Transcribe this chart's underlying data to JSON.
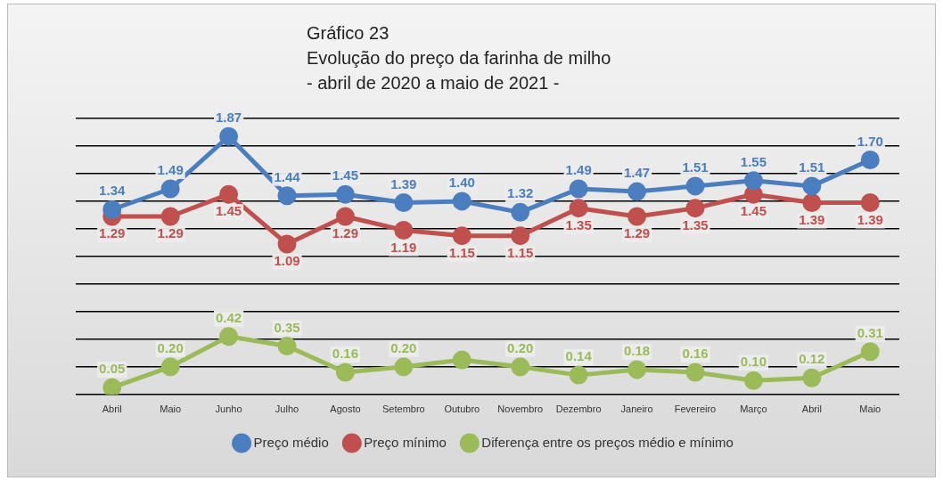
{
  "chart_data": {
    "type": "line",
    "title": "Gráfico 23\nEvolução do preço da farinha de milho\n- abril de 2020 a maio de 2021 -",
    "categories": [
      "Abril",
      "Maio",
      "Junho",
      "Julho",
      "Agosto",
      "Setembro",
      "Outubro",
      "Novembro",
      "Dezembro",
      "Janeiro",
      "Fevereiro",
      "Março",
      "Abril",
      "Maio"
    ],
    "series": [
      {
        "name": "Preço médio",
        "color": "#4a7ebf",
        "values": [
          1.34,
          1.49,
          1.87,
          1.44,
          1.45,
          1.39,
          1.4,
          1.32,
          1.49,
          1.47,
          1.51,
          1.55,
          1.51,
          1.7
        ],
        "value_labels": [
          "1.34",
          "1.49",
          "1.87",
          "1.44",
          "1.45",
          "1.39",
          "1.40",
          "1.32",
          "1.49",
          "1.47",
          "1.51",
          "1.55",
          "1.51",
          "1.70"
        ]
      },
      {
        "name": "Preço mínimo",
        "color": "#c0504d",
        "values": [
          1.29,
          1.29,
          1.45,
          1.09,
          1.29,
          1.19,
          1.15,
          1.15,
          1.35,
          1.29,
          1.35,
          1.45,
          1.39,
          1.39
        ]
      },
      {
        "name": "Diferença entre os preços médio e mínimo",
        "color": "#9bbb59",
        "values": [
          0.05,
          0.2,
          0.42,
          0.35,
          0.16,
          0.2,
          0.25,
          0.2,
          0.14,
          0.18,
          0.16,
          0.1,
          0.12,
          0.31
        ],
        "value_labels": [
          "0.05",
          "0.20",
          "0.42",
          "0.35",
          "0.16",
          "0.20",
          null,
          "0.20",
          "0.14",
          "0.18",
          "0.16",
          "0.10",
          "0.12",
          "0.31"
        ]
      }
    ],
    "data_labels": true,
    "ylim": [
      0,
      2
    ],
    "yticks": [
      {
        "value": 0,
        "label": null
      },
      {
        "value": 0.2,
        "label": null
      },
      {
        "value": 0.4,
        "label": null
      },
      {
        "value": 0.6,
        "label": null
      },
      {
        "value": 0.8,
        "label": null
      },
      {
        "value": 1,
        "label": null
      },
      {
        "value": 1.2,
        "label": null
      },
      {
        "value": 1.4,
        "label": null
      },
      {
        "value": 1.6,
        "label": null
      },
      {
        "value": 1.8,
        "label": null
      },
      {
        "value": 2,
        "label": null
      }
    ],
    "grid": "y",
    "legend": "bottom",
    "marker": "circle",
    "line_style": "solid"
  }
}
